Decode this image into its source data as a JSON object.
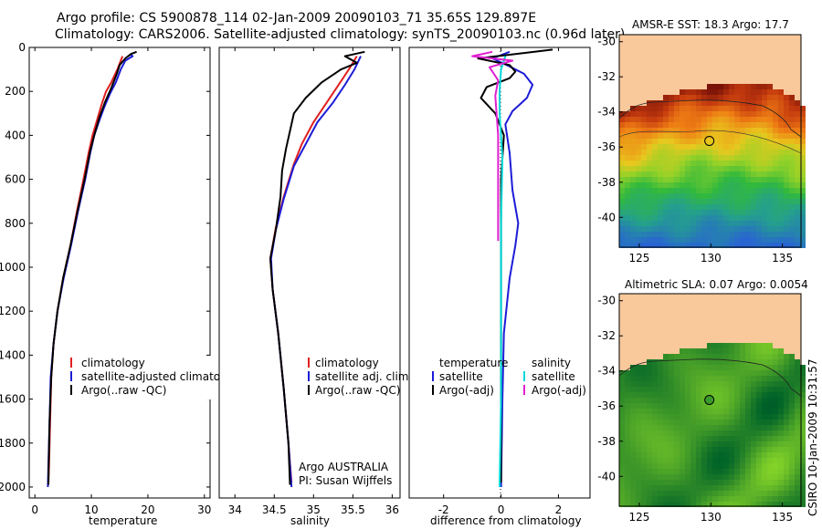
{
  "header": {
    "line1": "Argo profile: CS 5900878_114 02-Jan-2009 20090103_71 35.65S 129.897E",
    "line2": "Climatology: CARS2006. Satellite-adjusted climatology: synTS_20090103.nc (0.96d later)"
  },
  "colors": {
    "climatology": "#e02020",
    "satellite": "#1c1cd8",
    "argo": "#000000",
    "sat_salinity": "#00d8d8",
    "argo_adj_salinity": "#e020d0",
    "land": "#f9c89b"
  },
  "chart_data": [
    {
      "type": "line",
      "name": "temperature-panel",
      "xlabel": "temperature",
      "ylabel": "",
      "xlim": [
        -1,
        31
      ],
      "ylim": [
        0,
        2050
      ],
      "yreversed": true,
      "xticks": [
        0,
        10,
        20,
        30
      ],
      "yticks": [
        0,
        200,
        400,
        600,
        800,
        1000,
        1200,
        1400,
        1600,
        1800,
        2000
      ],
      "legend": [
        "climatology",
        "satellite-adjusted climatology",
        "Argo(..raw -QC)"
      ],
      "series": [
        {
          "name": "climatology",
          "color": "#e02020",
          "points": [
            [
              15.5,
              40
            ],
            [
              15.2,
              60
            ],
            [
              14.6,
              100
            ],
            [
              13.5,
              160
            ],
            [
              12.6,
              200
            ],
            [
              11.8,
              260
            ],
            [
              11.0,
              330
            ],
            [
              10.2,
              400
            ],
            [
              9.5,
              480
            ],
            [
              8.6,
              600
            ],
            [
              7.4,
              750
            ],
            [
              6.3,
              900
            ],
            [
              5.0,
              1050
            ],
            [
              4.0,
              1200
            ],
            [
              3.3,
              1350
            ],
            [
              2.9,
              1500
            ],
            [
              2.7,
              1700
            ],
            [
              2.5,
              1900
            ],
            [
              2.4,
              1980
            ]
          ]
        },
        {
          "name": "satellite",
          "color": "#1c1cd8",
          "points": [
            [
              16.8,
              30
            ],
            [
              17.3,
              40
            ],
            [
              16.0,
              60
            ],
            [
              15.2,
              100
            ],
            [
              14.3,
              160
            ],
            [
              13.3,
              210
            ],
            [
              12.3,
              270
            ],
            [
              11.3,
              340
            ],
            [
              10.5,
              400
            ],
            [
              9.8,
              480
            ],
            [
              8.9,
              600
            ],
            [
              7.6,
              750
            ],
            [
              6.4,
              900
            ],
            [
              5.1,
              1050
            ],
            [
              4.0,
              1200
            ],
            [
              3.3,
              1350
            ],
            [
              2.8,
              1500
            ],
            [
              2.6,
              1700
            ],
            [
              2.4,
              1900
            ],
            [
              2.3,
              2000
            ]
          ]
        },
        {
          "name": "Argo",
          "color": "#000",
          "points": [
            [
              18.0,
              20
            ],
            [
              17.0,
              30
            ],
            [
              16.0,
              50
            ],
            [
              15.0,
              80
            ],
            [
              14.5,
              120
            ],
            [
              13.6,
              180
            ],
            [
              12.4,
              250
            ],
            [
              11.4,
              320
            ],
            [
              10.6,
              390
            ],
            [
              9.8,
              470
            ],
            [
              8.8,
              600
            ],
            [
              7.5,
              750
            ],
            [
              6.3,
              900
            ],
            [
              5.0,
              1050
            ],
            [
              4.0,
              1200
            ],
            [
              3.3,
              1350
            ],
            [
              2.9,
              1500
            ],
            [
              2.6,
              1700
            ],
            [
              2.45,
              1900
            ],
            [
              2.4,
              1990
            ]
          ]
        }
      ]
    },
    {
      "type": "line",
      "name": "salinity-panel",
      "xlabel": "salinity",
      "ylabel": "",
      "xlim": [
        33.8,
        36.1
      ],
      "ylim": [
        0,
        2050
      ],
      "yreversed": true,
      "xticks": [
        34,
        34.5,
        35,
        35.5,
        36
      ],
      "yticks": [],
      "legend": [
        "climatology",
        "satellite adj. clim.",
        "Argo(..raw -QC)"
      ],
      "annotation": [
        "Argo AUSTRALIA",
        "PI: Susan Wijffels"
      ],
      "series": [
        {
          "name": "climatology",
          "color": "#e02020",
          "points": [
            [
              35.55,
              40
            ],
            [
              35.45,
              100
            ],
            [
              35.3,
              180
            ],
            [
              35.15,
              260
            ],
            [
              35.0,
              340
            ],
            [
              34.85,
              440
            ],
            [
              34.75,
              530
            ],
            [
              34.62,
              680
            ],
            [
              34.52,
              820
            ],
            [
              34.45,
              960
            ],
            [
              34.48,
              1100
            ],
            [
              34.55,
              1300
            ],
            [
              34.62,
              1550
            ],
            [
              34.68,
              1800
            ],
            [
              34.72,
              1980
            ]
          ]
        },
        {
          "name": "satellite",
          "color": "#1c1cd8",
          "points": [
            [
              35.6,
              40
            ],
            [
              35.52,
              100
            ],
            [
              35.4,
              170
            ],
            [
              35.25,
              250
            ],
            [
              35.05,
              340
            ],
            [
              34.9,
              440
            ],
            [
              34.75,
              540
            ],
            [
              34.62,
              690
            ],
            [
              34.52,
              830
            ],
            [
              34.46,
              960
            ],
            [
              34.48,
              1100
            ],
            [
              34.55,
              1300
            ],
            [
              34.62,
              1550
            ],
            [
              34.68,
              1800
            ],
            [
              34.72,
              2000
            ]
          ]
        },
        {
          "name": "Argo",
          "color": "#000",
          "points": [
            [
              35.65,
              20
            ],
            [
              35.4,
              40
            ],
            [
              35.55,
              70
            ],
            [
              35.35,
              100
            ],
            [
              35.1,
              160
            ],
            [
              34.9,
              230
            ],
            [
              34.75,
              300
            ],
            [
              34.7,
              380
            ],
            [
              34.65,
              460
            ],
            [
              34.6,
              560
            ],
            [
              34.58,
              680
            ],
            [
              34.52,
              830
            ],
            [
              34.45,
              960
            ],
            [
              34.48,
              1100
            ],
            [
              34.55,
              1300
            ],
            [
              34.62,
              1550
            ],
            [
              34.68,
              1800
            ],
            [
              34.7,
              1990
            ]
          ]
        }
      ]
    },
    {
      "type": "line",
      "name": "difference-panel",
      "xlabel": "difference from climatology",
      "ylabel": "",
      "xlim": [
        -3.2,
        3.1
      ],
      "ylim": [
        0,
        2050
      ],
      "yreversed": true,
      "xticks": [
        -2,
        0,
        2
      ],
      "yticks": [],
      "legend": {
        "temperature": [
          "satellite",
          "Argo(-adj)"
        ],
        "salinity": [
          "satellite",
          "Argo(-adj)"
        ]
      },
      "series": [
        {
          "name": "temp-satellite",
          "color": "#1c1cd8",
          "points": [
            [
              0.3,
              20
            ],
            [
              -0.3,
              50
            ],
            [
              0.2,
              80
            ],
            [
              0.8,
              120
            ],
            [
              1.1,
              170
            ],
            [
              0.9,
              230
            ],
            [
              0.4,
              290
            ],
            [
              0.15,
              350
            ],
            [
              0.3,
              480
            ],
            [
              0.4,
              650
            ],
            [
              0.6,
              800
            ],
            [
              0.5,
              900
            ],
            [
              0.3,
              1050
            ],
            [
              0.1,
              1300
            ],
            [
              0.05,
              1600
            ],
            [
              0.0,
              2000
            ]
          ]
        },
        {
          "name": "temp-argo",
          "color": "#000",
          "points": [
            [
              1.8,
              10
            ],
            [
              0.5,
              30
            ],
            [
              -0.8,
              50
            ],
            [
              0.3,
              80
            ],
            [
              0.5,
              110
            ],
            [
              0.3,
              140
            ],
            [
              -0.5,
              180
            ],
            [
              -0.7,
              230
            ],
            [
              -0.2,
              300
            ],
            [
              0.1,
              400
            ],
            [
              0.0,
              600
            ],
            [
              0.0,
              800
            ],
            [
              0.0,
              1000
            ],
            [
              0.0,
              1300
            ],
            [
              0.0,
              1600
            ],
            [
              0.0,
              1980
            ]
          ]
        },
        {
          "name": "sal-satellite",
          "color": "#00d8d8",
          "points": [
            [
              0.15,
              40
            ],
            [
              0.0,
              100
            ],
            [
              -0.05,
              200
            ],
            [
              -0.05,
              300
            ],
            [
              0.05,
              500
            ],
            [
              0.0,
              800
            ],
            [
              0.0,
              1200
            ],
            [
              0.0,
              1600
            ],
            [
              -0.05,
              2000
            ]
          ]
        },
        {
          "name": "sal-argo",
          "color": "#e020d0",
          "points": [
            [
              -0.3,
              20
            ],
            [
              -1.0,
              40
            ],
            [
              0.4,
              60
            ],
            [
              -0.4,
              90
            ],
            [
              -0.1,
              150
            ],
            [
              -0.2,
              220
            ],
            [
              -0.1,
              400
            ],
            [
              -0.1,
              700
            ],
            [
              -0.1,
              880
            ]
          ]
        }
      ]
    },
    {
      "type": "heatmap",
      "name": "sst-map",
      "title": "AMSR-E SST: 18.3 Argo: 17.7",
      "xlim": [
        123.6,
        136.3
      ],
      "ylim": [
        -41.7,
        -29.6
      ],
      "xticks": [
        125,
        130,
        135
      ],
      "yticks": [
        -30,
        -32,
        -34,
        -36,
        -38,
        -40
      ],
      "marker": [
        129.897,
        -35.65
      ]
    },
    {
      "type": "heatmap",
      "name": "sla-map",
      "title": "Altimetric SLA: 0.07 Argo: 0.0054",
      "xlim": [
        123.6,
        136.3
      ],
      "ylim": [
        -41.7,
        -29.6
      ],
      "xticks": [
        125,
        130,
        135
      ],
      "yticks": [
        -30,
        -32,
        -34,
        -36,
        -38,
        -40
      ],
      "marker": [
        129.897,
        -35.65
      ]
    }
  ],
  "credit": "CSIRO 10-Jan-2009 10:31:57"
}
